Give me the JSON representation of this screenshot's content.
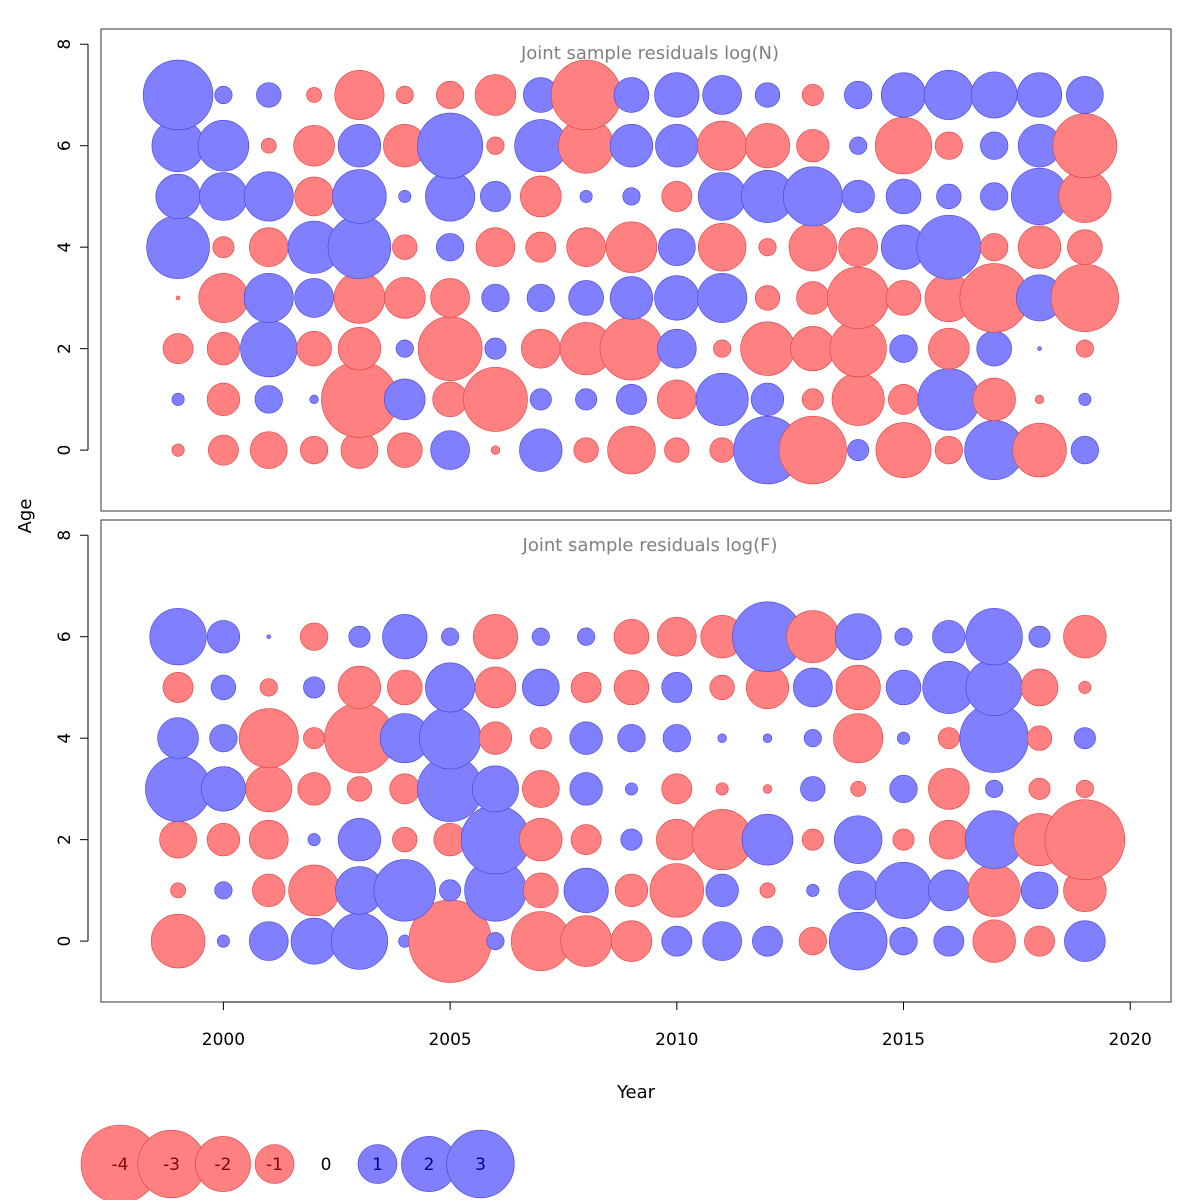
{
  "chart_data": {
    "type": "bubble",
    "xlabel": "Year",
    "ylabel": "Age",
    "x_ticks": [
      2000,
      2005,
      2010,
      2015,
      2020
    ],
    "y_ticks": [
      0,
      2,
      4,
      6,
      8
    ],
    "xlim": [
      1997.3,
      2020.9
    ],
    "ylim": [
      -1.2,
      8.3
    ],
    "years": [
      1999,
      2000,
      2001,
      2002,
      2003,
      2004,
      2005,
      2006,
      2007,
      2008,
      2009,
      2010,
      2011,
      2012,
      2013,
      2014,
      2015,
      2016,
      2017,
      2018,
      2019
    ],
    "colors": {
      "positive": "#8080ff",
      "negative": "#ff8080",
      "positive_stroke": "#4040e0",
      "negative_stroke": "#e04040"
    },
    "panels": [
      {
        "title": "Joint sample residuals log(N)",
        "ages": [
          0,
          1,
          2,
          3,
          4,
          5,
          6,
          7
        ],
        "residuals": [
          [
            -0.1,
            -0.6,
            -0.9,
            -0.5,
            -0.9,
            -0.8,
            1.0,
            -0.05,
            1.2,
            -0.4,
            -1.5,
            -0.4,
            -0.4,
            3.0,
            -3.0,
            0.3,
            -2.0,
            -0.5,
            2.3,
            -1.9,
            0.5
          ],
          [
            0.1,
            -0.7,
            0.5,
            0.05,
            -3.8,
            1.1,
            -0.8,
            -2.7,
            0.3,
            0.3,
            0.6,
            -1.0,
            1.8,
            0.7,
            -0.3,
            -1.8,
            -0.6,
            2.5,
            -1.2,
            -0.05,
            0.1
          ],
          [
            -0.6,
            -0.7,
            2.1,
            -0.8,
            -1.2,
            0.2,
            -2.7,
            0.3,
            -1.0,
            -1.8,
            -2.6,
            1.0,
            -0.2,
            -1.9,
            -1.3,
            -2.1,
            0.5,
            -1.1,
            0.8,
            0.01,
            -0.2
          ],
          [
            -0.01,
            -1.6,
            1.6,
            1.0,
            -1.7,
            -1.1,
            -1.0,
            0.5,
            0.5,
            0.8,
            1.2,
            1.3,
            1.6,
            -0.4,
            -0.7,
            -2.5,
            -0.8,
            -1.5,
            -3.1,
            1.4,
            -3.0
          ],
          [
            2.6,
            -0.3,
            -1.0,
            1.8,
            2.6,
            -0.4,
            0.5,
            -1.0,
            -0.6,
            -1.0,
            -1.7,
            0.9,
            -1.5,
            -0.2,
            -1.5,
            -1.0,
            1.3,
            2.7,
            -0.5,
            -1.2,
            -0.8
          ],
          [
            1.3,
            1.5,
            1.6,
            -1.0,
            1.9,
            0.1,
            1.6,
            0.6,
            -1.1,
            0.1,
            0.2,
            -0.6,
            1.5,
            1.8,
            2.3,
            0.7,
            0.8,
            0.4,
            0.5,
            2.1,
            -1.8
          ],
          [
            1.8,
            1.7,
            -0.15,
            -1.1,
            1.2,
            -1.2,
            2.8,
            -0.2,
            1.8,
            -2.0,
            1.2,
            1.2,
            -1.6,
            -1.3,
            -0.7,
            0.2,
            -2.1,
            -0.5,
            0.5,
            1.2,
            -2.7
          ],
          [
            3.2,
            0.2,
            0.4,
            -0.15,
            -1.6,
            -0.2,
            -0.5,
            -1.1,
            0.8,
            -3.2,
            0.8,
            1.3,
            1.0,
            0.4,
            -0.3,
            0.5,
            1.3,
            1.6,
            1.4,
            1.3,
            0.9
          ]
        ]
      },
      {
        "title": "Joint sample residuals log(F)",
        "ages": [
          0,
          1,
          2,
          3,
          4,
          5,
          6
        ],
        "residuals": [
          [
            -1.9,
            0.1,
            1.0,
            1.4,
            2.1,
            0.1,
            -4.5,
            0.2,
            -2.3,
            -1.7,
            -1.1,
            0.6,
            1.0,
            0.6,
            -0.5,
            2.2,
            0.5,
            0.6,
            -1.2,
            -0.6,
            1.1
          ],
          [
            -0.15,
            0.2,
            -0.7,
            -1.7,
            1.5,
            2.5,
            0.3,
            2.5,
            -0.8,
            1.3,
            -0.7,
            -1.9,
            0.7,
            -0.15,
            0.1,
            1.0,
            2.1,
            1.1,
            -1.8,
            0.9,
            -1.2
          ],
          [
            -0.9,
            -0.7,
            -1.0,
            0.1,
            1.2,
            -0.4,
            -0.7,
            3.1,
            -1.2,
            -0.6,
            0.3,
            -1.1,
            -2.4,
            1.7,
            -0.3,
            1.5,
            -0.3,
            -1.0,
            2.2,
            -1.8,
            -4.2
          ],
          [
            2.8,
            1.3,
            -1.4,
            -0.7,
            -0.4,
            -0.6,
            2.8,
            1.4,
            -0.9,
            0.7,
            0.1,
            -0.6,
            -0.1,
            -0.05,
            0.4,
            -0.15,
            0.5,
            -1.1,
            0.2,
            -0.3,
            -0.2
          ],
          [
            1.1,
            0.5,
            -2.3,
            -0.3,
            -3.2,
            1.6,
            2.5,
            -0.7,
            -0.3,
            0.7,
            0.5,
            0.5,
            0.05,
            0.05,
            0.2,
            -1.6,
            0.1,
            -0.3,
            3.1,
            -0.4,
            0.3
          ],
          [
            -0.6,
            0.4,
            -0.2,
            0.3,
            -1.2,
            -0.8,
            1.6,
            -1.1,
            0.9,
            -0.6,
            -0.8,
            0.6,
            -0.4,
            -1.2,
            1.0,
            -1.3,
            0.8,
            1.8,
            2.1,
            -0.9,
            -0.1
          ],
          [
            2.1,
            0.7,
            0.01,
            -0.5,
            0.3,
            1.3,
            0.2,
            -1.3,
            0.2,
            0.2,
            -0.8,
            -1.0,
            -1.2,
            3.2,
            -1.8,
            1.4,
            0.2,
            0.7,
            2.1,
            0.3,
            -1.2
          ]
        ]
      }
    ],
    "legend": {
      "values": [
        -4,
        -3,
        -2,
        -1,
        0,
        1,
        2,
        3
      ],
      "labels": [
        "-4",
        "-3",
        "-2",
        "-1",
        "0",
        "1",
        "2",
        "3"
      ],
      "position": "bottom-left"
    }
  }
}
